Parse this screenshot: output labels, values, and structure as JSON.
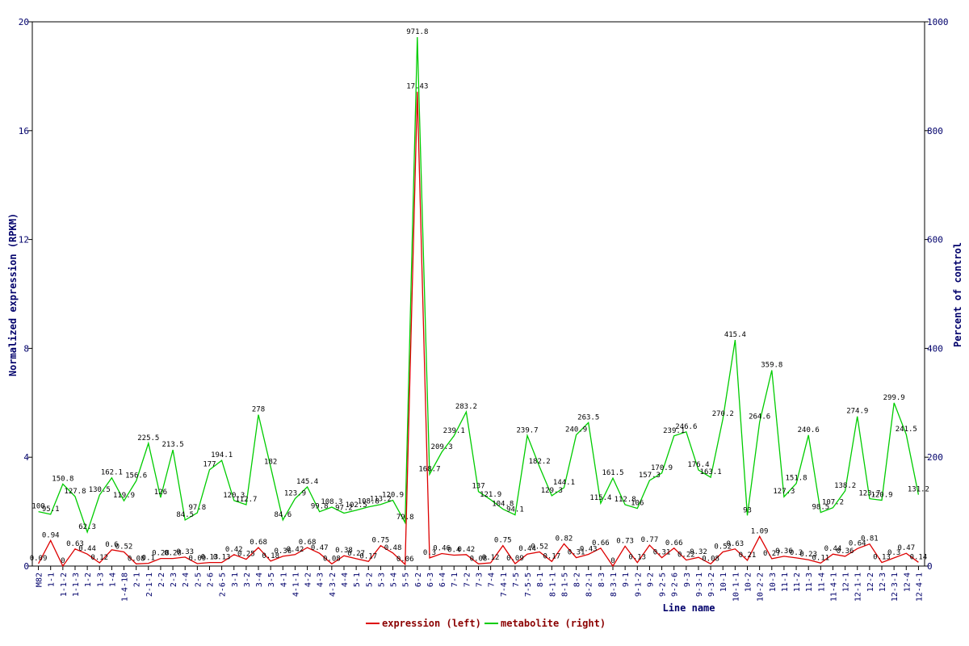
{
  "chart_data": {
    "type": "line",
    "xlabel": "Line name",
    "ylabel_left": "Normalized expression (RPKM)",
    "ylabel_right": "Percent of control",
    "ylim_left": [
      0,
      20
    ],
    "ylim_right": [
      0,
      1000
    ],
    "yticks_left": [
      0,
      4,
      8,
      12,
      16,
      20
    ],
    "yticks_right": [
      0,
      200,
      400,
      600,
      800,
      1000
    ],
    "grid": false,
    "legend_position": "bottom",
    "x_tick_labels": [
      "M82",
      "1-1",
      "1-1-2",
      "1-1-3",
      "1-2",
      "1-3",
      "1-4",
      "1-4-18",
      "2-1",
      "2-1-1",
      "2-2",
      "2-3",
      "2-4",
      "2-5",
      "2-6",
      "2-6-5",
      "3-1",
      "3-2",
      "3-4",
      "3-5",
      "4-1",
      "4-1-1",
      "4-2",
      "4-3",
      "4-3-2",
      "4-4",
      "5-1",
      "5-2",
      "5-3",
      "5-4",
      "5-5",
      "6-2",
      "6-3",
      "6-4",
      "7-1",
      "7-2",
      "7-3",
      "7-4",
      "7-4-1",
      "7-5",
      "7-5-5",
      "8-1",
      "8-1-1",
      "8-1-5",
      "8-2",
      "8-2-1",
      "8-3",
      "8-3-1",
      "9-1",
      "9-1-2",
      "9-2",
      "9-2-5",
      "9-2-6",
      "9-3",
      "9-3-1",
      "9-3-2",
      "10-1",
      "10-1-1",
      "10-2",
      "10-2-2",
      "10-3",
      "11-1",
      "11-2",
      "11-3",
      "11-4",
      "11-4-1",
      "12-1",
      "12-1-1",
      "12-2",
      "12-3",
      "12-3-1",
      "12-4",
      "12-4-1"
    ],
    "series": [
      {
        "name": "expression (left)",
        "axis": "left",
        "color": "#dd0000",
        "values": [
          0.09,
          0.94,
          0,
          0.63,
          0.44,
          0.12,
          0.6,
          0.52,
          0.08,
          0.1,
          0.28,
          0.28,
          0.33,
          0.09,
          0.13,
          0.13,
          0.42,
          0.25,
          0.68,
          0.18,
          0.36,
          0.42,
          0.68,
          0.47,
          0.08,
          0.38,
          0.27,
          0.17,
          0.75,
          0.48,
          0.06,
          17.43,
          0.3,
          0.46,
          0.4,
          0.42,
          0.08,
          0.12,
          0.75,
          0.09,
          0.44,
          0.52,
          0.17,
          0.82,
          0.31,
          0.43,
          0.66,
          0,
          0.73,
          0.13,
          0.77,
          0.31,
          0.66,
          0.22,
          0.32,
          0.08,
          0.52,
          0.63,
          0.21,
          1.09,
          0.27,
          0.36,
          0.3,
          0.23,
          0.11,
          0.44,
          0.36,
          0.64,
          0.81,
          0.13,
          0.3,
          0.47,
          0.14
        ]
      },
      {
        "name": "metabolite (right)",
        "axis": "right",
        "color": "#00cc00",
        "values": [
          100,
          95.1,
          150.8,
          127.8,
          62.3,
          130.5,
          162.1,
          119.9,
          156.6,
          225.5,
          126,
          213.5,
          84.5,
          97.8,
          177,
          194.1,
          120.3,
          112.7,
          278,
          182,
          84.6,
          123.9,
          145.4,
          99.8,
          108.3,
          97.2,
          102.5,
          108.8,
          113.2,
          120.9,
          79.8,
          971.8,
          168.7,
          209.3,
          239.1,
          283.2,
          137,
          121.9,
          104.8,
          94.1,
          239.7,
          182.2,
          129.3,
          144.1,
          240.9,
          263.5,
          115.4,
          161.5,
          112.8,
          106,
          157.3,
          170.9,
          239.1,
          246.6,
          176.4,
          163.1,
          270.2,
          415.4,
          93,
          264.6,
          359.8,
          127.3,
          151.8,
          240.6,
          98.5,
          107.2,
          138.2,
          274.9,
          123.7,
          120.9,
          299.9,
          241.5,
          131.2
        ]
      }
    ]
  }
}
